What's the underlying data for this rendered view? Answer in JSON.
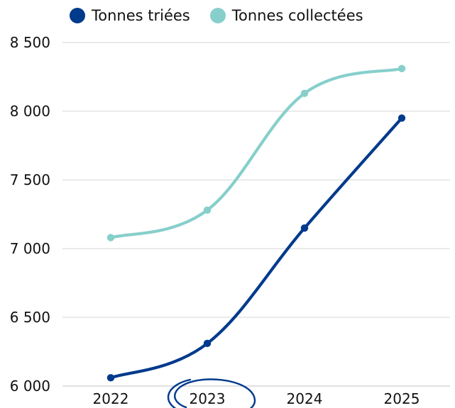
{
  "chart_data": {
    "type": "line",
    "categories": [
      "2022",
      "2023",
      "2024",
      "2025"
    ],
    "series": [
      {
        "name": "Tonnes triées",
        "values": [
          6060,
          6310,
          7150,
          7950
        ],
        "color": "#003a8c"
      },
      {
        "name": "Tonnes collectées",
        "values": [
          7080,
          7280,
          8130,
          8310
        ],
        "color": "#86cfcb"
      }
    ],
    "y_ticks": [
      "6 000",
      "6 500",
      "7 000",
      "7 500",
      "8 000",
      "8 500"
    ],
    "ylim": [
      6000,
      8500
    ],
    "grid": true,
    "legend_position": "top",
    "highlighted_category": "2023",
    "highlight_color": "#003a8c",
    "title": "",
    "xlabel": "",
    "ylabel": ""
  }
}
